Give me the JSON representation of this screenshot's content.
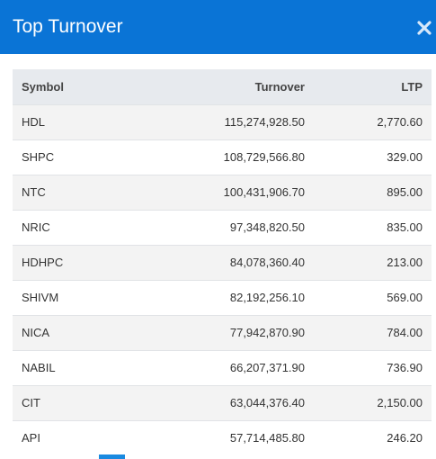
{
  "modal": {
    "title": "Top Turnover",
    "close_icon": "close-icon",
    "accent_color": "#0a74d6"
  },
  "table": {
    "columns": [
      "Symbol",
      "Turnover",
      "LTP"
    ],
    "rows": [
      {
        "symbol": "HDL",
        "turnover": "115,274,928.50",
        "ltp": "2,770.60"
      },
      {
        "symbol": "SHPC",
        "turnover": "108,729,566.80",
        "ltp": "329.00"
      },
      {
        "symbol": "NTC",
        "turnover": "100,431,906.70",
        "ltp": "895.00"
      },
      {
        "symbol": "NRIC",
        "turnover": "97,348,820.50",
        "ltp": "835.00"
      },
      {
        "symbol": "HDHPC",
        "turnover": "84,078,360.40",
        "ltp": "213.00"
      },
      {
        "symbol": "SHIVM",
        "turnover": "82,192,256.10",
        "ltp": "569.00"
      },
      {
        "symbol": "NICA",
        "turnover": "77,942,870.90",
        "ltp": "784.00"
      },
      {
        "symbol": "NABIL",
        "turnover": "66,207,371.90",
        "ltp": "736.90"
      },
      {
        "symbol": "CIT",
        "turnover": "63,044,376.40",
        "ltp": "2,150.00"
      },
      {
        "symbol": "API",
        "turnover": "57,714,485.80",
        "ltp": "246.20"
      }
    ]
  }
}
